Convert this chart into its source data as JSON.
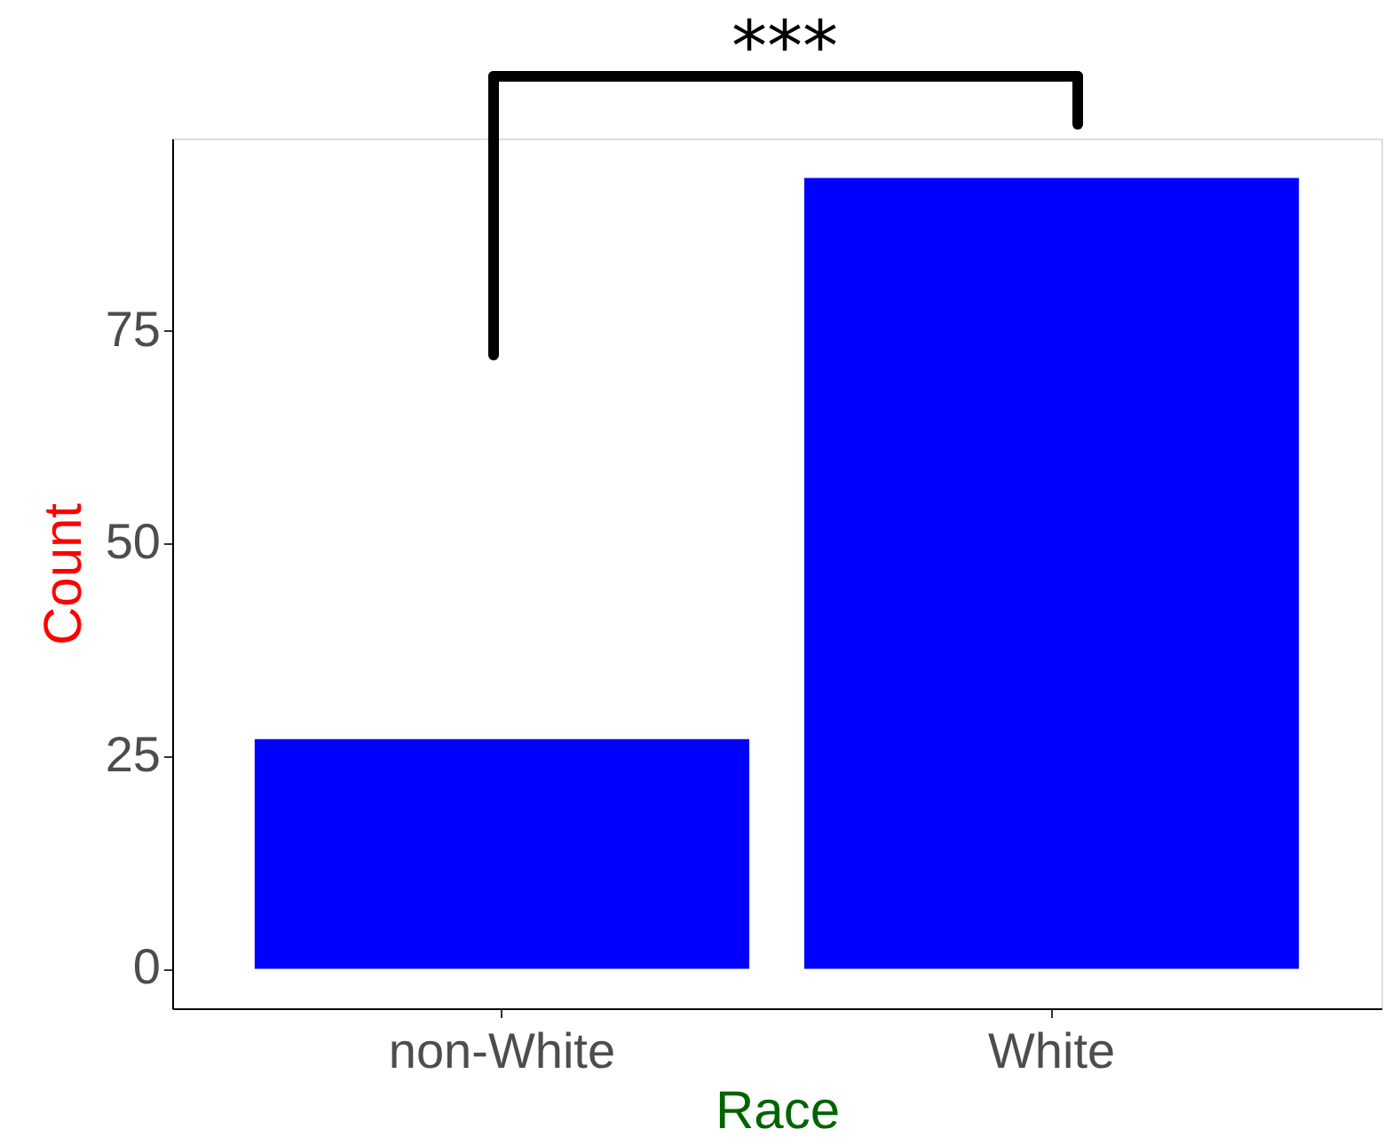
{
  "chart_data": {
    "type": "bar",
    "categories": [
      "non-White",
      "White"
    ],
    "values": [
      27,
      93
    ],
    "color": "#0000ff",
    "xlabel": "Race",
    "ylabel": "Count",
    "ylim": [
      -4.65,
      97.65
    ],
    "yticks": [
      0,
      25,
      50,
      75
    ],
    "grid": false,
    "annotations": [
      "***"
    ]
  }
}
